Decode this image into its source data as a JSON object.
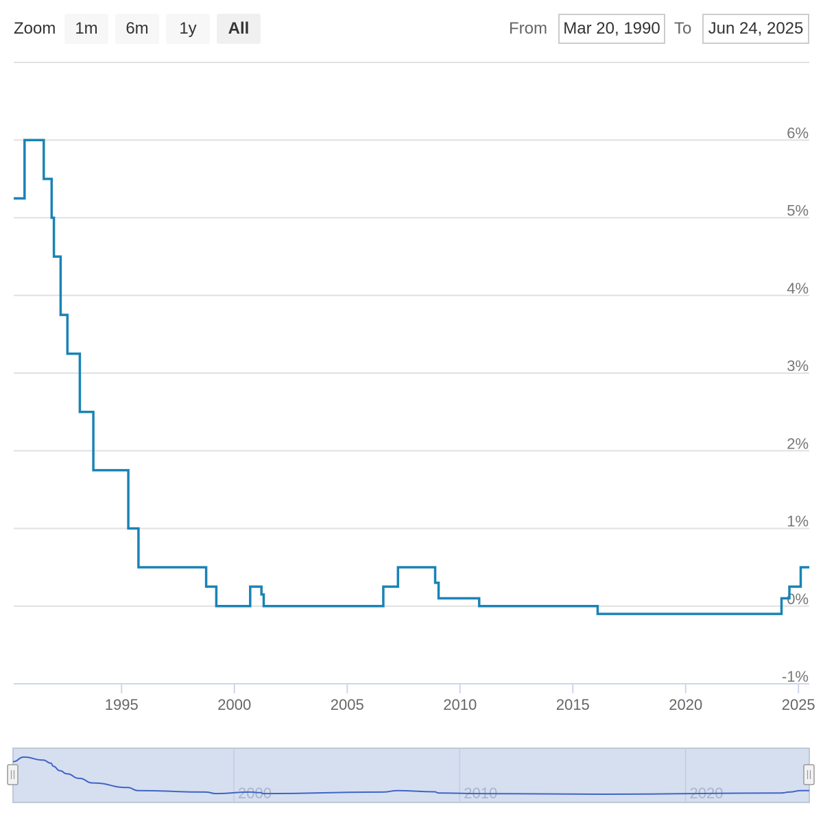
{
  "toolbar": {
    "zoom_label": "Zoom",
    "zoom_buttons": [
      "1m",
      "6m",
      "1y",
      "All"
    ],
    "active_zoom": "All",
    "from_label": "From",
    "from_value": "Mar 20, 1990",
    "to_label": "To",
    "to_value": "Jun 24, 2025"
  },
  "colors": {
    "series_line": "#1a83b5",
    "grid": "#e0e0e0",
    "navigator_fill": "#d6dff0",
    "navigator_line": "#3f64c4"
  },
  "chart_data": {
    "type": "line",
    "step": true,
    "xlim": [
      1990.22,
      2025.48
    ],
    "ylim": [
      -1,
      7
    ],
    "yticks": [
      -1,
      0,
      1,
      2,
      3,
      4,
      5,
      6
    ],
    "ytick_labels": [
      "-1%",
      "0%",
      "1%",
      "2%",
      "3%",
      "4%",
      "5%",
      "6%"
    ],
    "xticks": [
      1995,
      2000,
      2005,
      2010,
      2015,
      2020,
      2025
    ],
    "xtick_labels": [
      "1995",
      "2000",
      "2005",
      "2010",
      "2015",
      "2020",
      "2025"
    ],
    "grid": true,
    "legend": "none",
    "series": [
      {
        "points": [
          [
            1990.22,
            5.25
          ],
          [
            1990.7,
            6.0
          ],
          [
            1991.55,
            5.5
          ],
          [
            1991.9,
            5.0
          ],
          [
            1992.0,
            4.5
          ],
          [
            1992.3,
            3.75
          ],
          [
            1992.6,
            3.25
          ],
          [
            1993.15,
            2.5
          ],
          [
            1993.75,
            1.75
          ],
          [
            1995.3,
            1.0
          ],
          [
            1995.75,
            0.5
          ],
          [
            1998.75,
            0.25
          ],
          [
            1999.2,
            0.0
          ],
          [
            2000.7,
            0.25
          ],
          [
            2001.2,
            0.15
          ],
          [
            2001.3,
            0.0
          ],
          [
            2006.6,
            0.25
          ],
          [
            2007.25,
            0.5
          ],
          [
            2008.9,
            0.3
          ],
          [
            2009.05,
            0.1
          ],
          [
            2010.85,
            0.0
          ],
          [
            2016.1,
            -0.1
          ],
          [
            2024.25,
            0.1
          ],
          [
            2024.6,
            0.25
          ],
          [
            2025.1,
            0.5
          ],
          [
            2025.48,
            0.5
          ]
        ]
      }
    ],
    "navigator": {
      "xticks": [
        2000,
        2010,
        2020
      ],
      "xtick_labels": [
        "2000",
        "2010",
        "2020"
      ]
    }
  }
}
